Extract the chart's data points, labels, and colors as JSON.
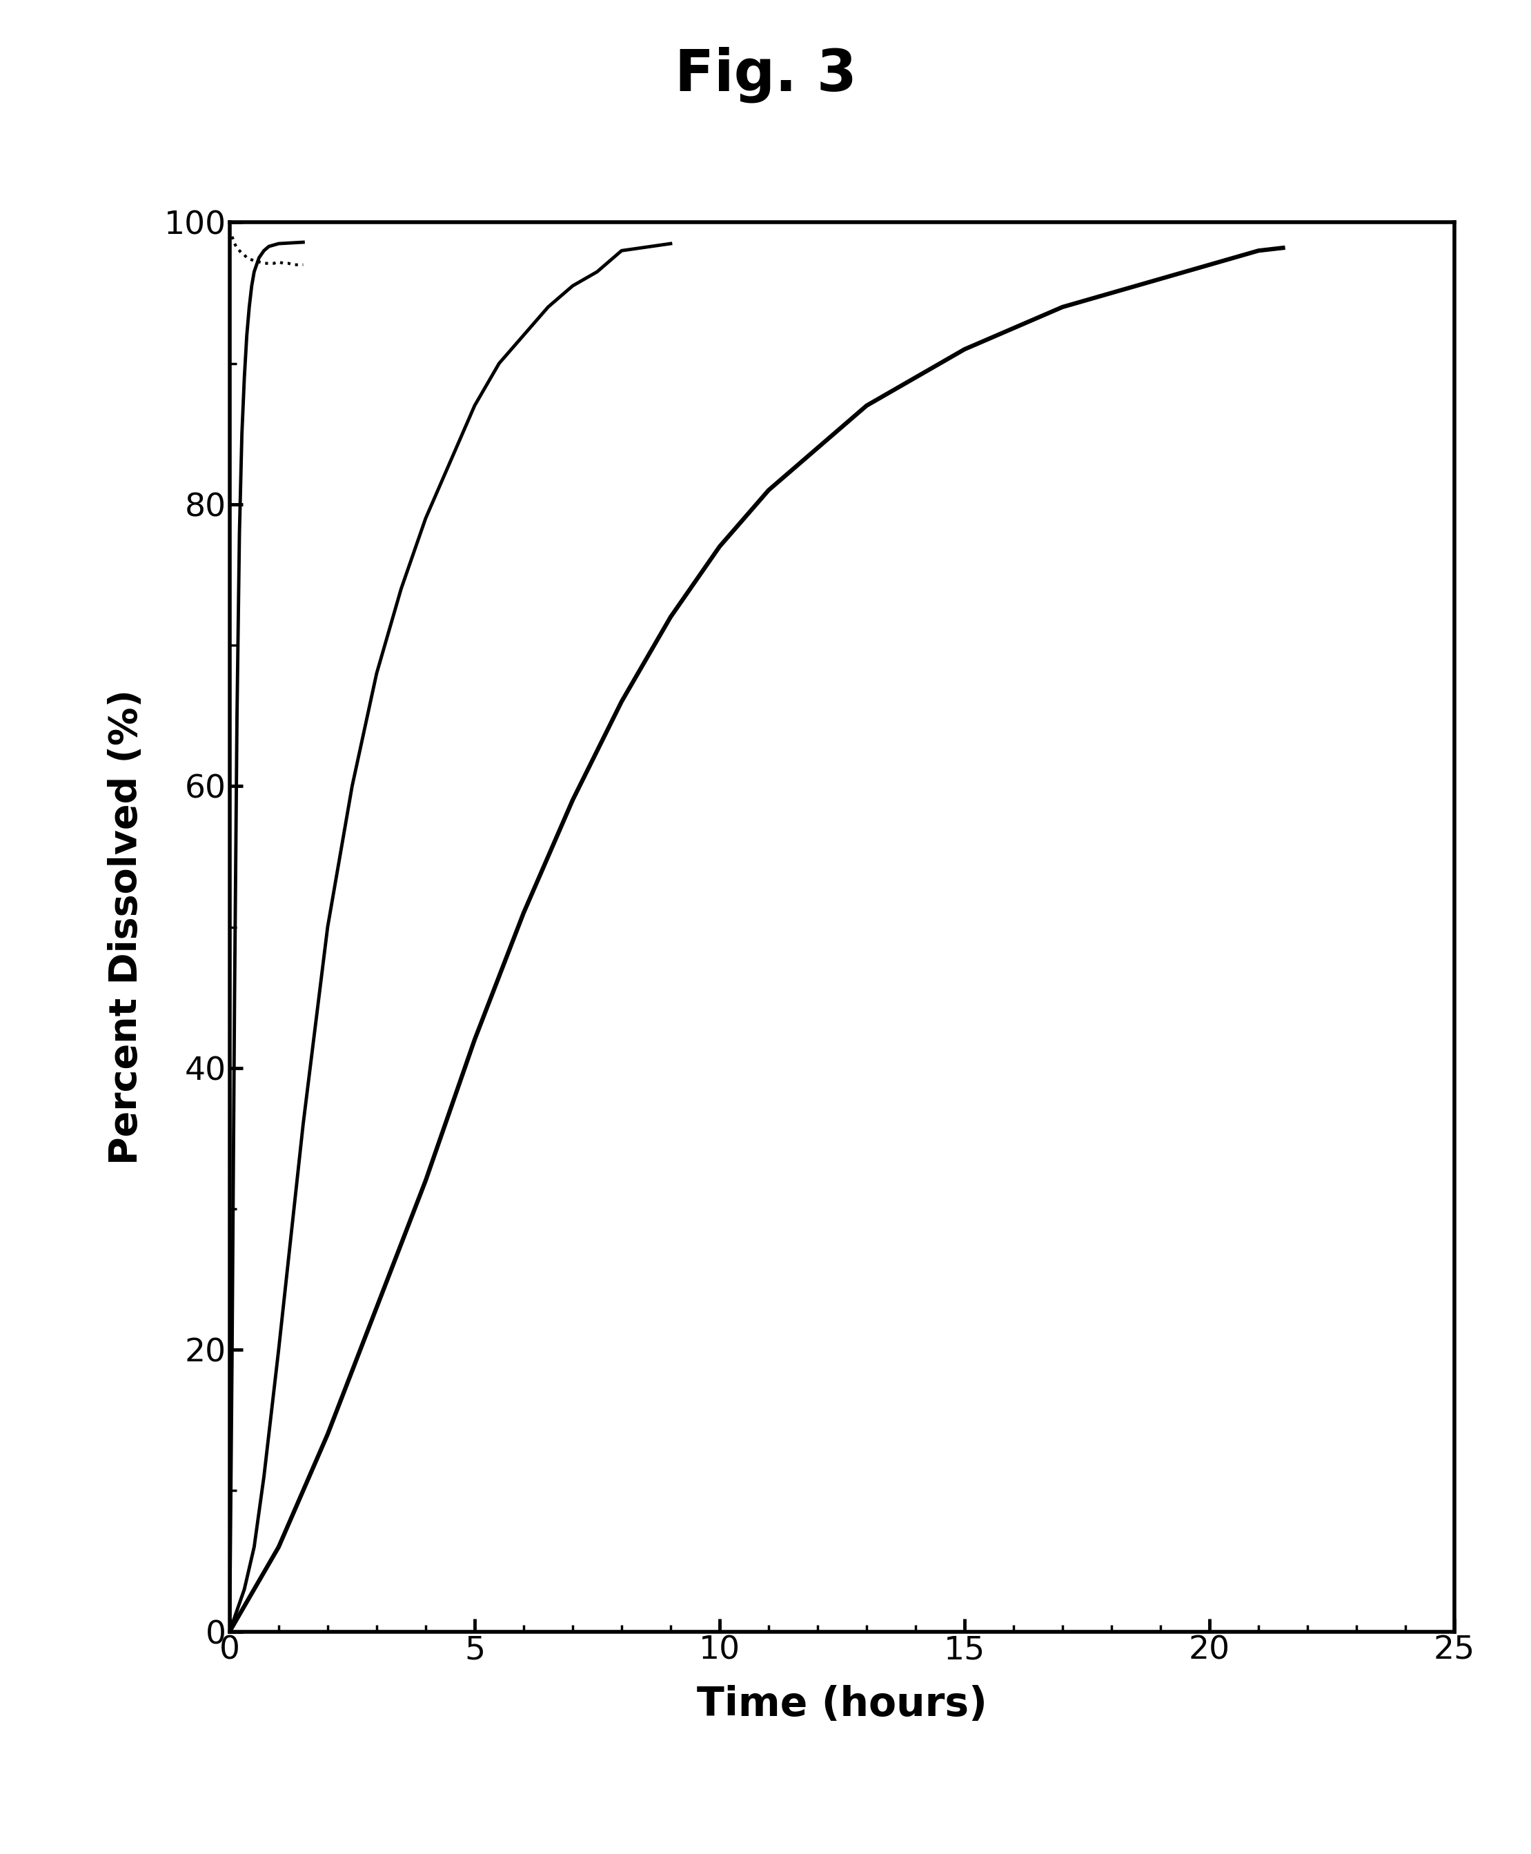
{
  "title": "Fig. 3",
  "xlabel": "Time (hours)",
  "ylabel": "Percent Dissolved (%)",
  "xlim": [
    0,
    25
  ],
  "ylim": [
    0,
    100
  ],
  "xticks": [
    0,
    5,
    10,
    15,
    20,
    25
  ],
  "yticks": [
    0,
    20,
    40,
    60,
    80,
    100
  ],
  "background_color": "#ffffff",
  "curves": [
    {
      "label": "curve1_dotted",
      "style": "dotted",
      "linewidth": 3.0,
      "color": "#000000",
      "x": [
        0.05,
        0.1,
        0.15,
        0.2,
        0.25,
        0.3,
        0.35,
        0.4,
        0.5,
        0.6,
        0.7,
        0.8,
        0.9,
        1.0,
        1.1,
        1.2,
        1.3,
        1.4,
        1.5
      ],
      "y": [
        99.0,
        98.5,
        98.2,
        98.0,
        97.8,
        97.7,
        97.5,
        97.4,
        97.3,
        97.2,
        97.1,
        97.1,
        97.1,
        97.2,
        97.1,
        97.1,
        97.0,
        97.0,
        97.0
      ]
    },
    {
      "label": "curve2_fast",
      "style": "solid",
      "linewidth": 3.5,
      "color": "#000000",
      "x": [
        0,
        0.05,
        0.1,
        0.15,
        0.2,
        0.25,
        0.3,
        0.35,
        0.4,
        0.45,
        0.5,
        0.6,
        0.7,
        0.8,
        1.0,
        1.5
      ],
      "y": [
        0,
        20,
        45,
        65,
        78,
        85,
        89,
        92,
        94,
        95.5,
        96.5,
        97.5,
        98.0,
        98.3,
        98.5,
        98.6
      ]
    },
    {
      "label": "curve3_medium",
      "style": "solid",
      "linewidth": 3.5,
      "color": "#000000",
      "x": [
        0,
        0.3,
        0.5,
        0.7,
        1.0,
        1.5,
        2.0,
        2.5,
        3.0,
        3.5,
        4.0,
        4.5,
        5.0,
        5.5,
        6.0,
        6.5,
        7.0,
        7.5,
        8.0,
        9.0
      ],
      "y": [
        0,
        3,
        6,
        11,
        20,
        36,
        50,
        60,
        68,
        74,
        79,
        83,
        87,
        90,
        92,
        94,
        95.5,
        96.5,
        98.0,
        98.5
      ]
    },
    {
      "label": "curve4_slow",
      "style": "solid",
      "linewidth": 4.5,
      "color": "#000000",
      "x": [
        0,
        1.0,
        2.0,
        3.0,
        4.0,
        5.0,
        6.0,
        7.0,
        8.0,
        9.0,
        10.0,
        11.0,
        12.0,
        13.0,
        14.0,
        15.0,
        16.0,
        17.0,
        18.0,
        19.0,
        20.0,
        21.0,
        21.5
      ],
      "y": [
        0,
        6,
        14,
        23,
        32,
        42,
        51,
        59,
        66,
        72,
        77,
        81,
        84,
        87,
        89,
        91,
        92.5,
        94,
        95,
        96,
        97,
        98.0,
        98.2
      ]
    }
  ],
  "figsize_inches": [
    22.19,
    26.87
  ],
  "dpi": 100
}
